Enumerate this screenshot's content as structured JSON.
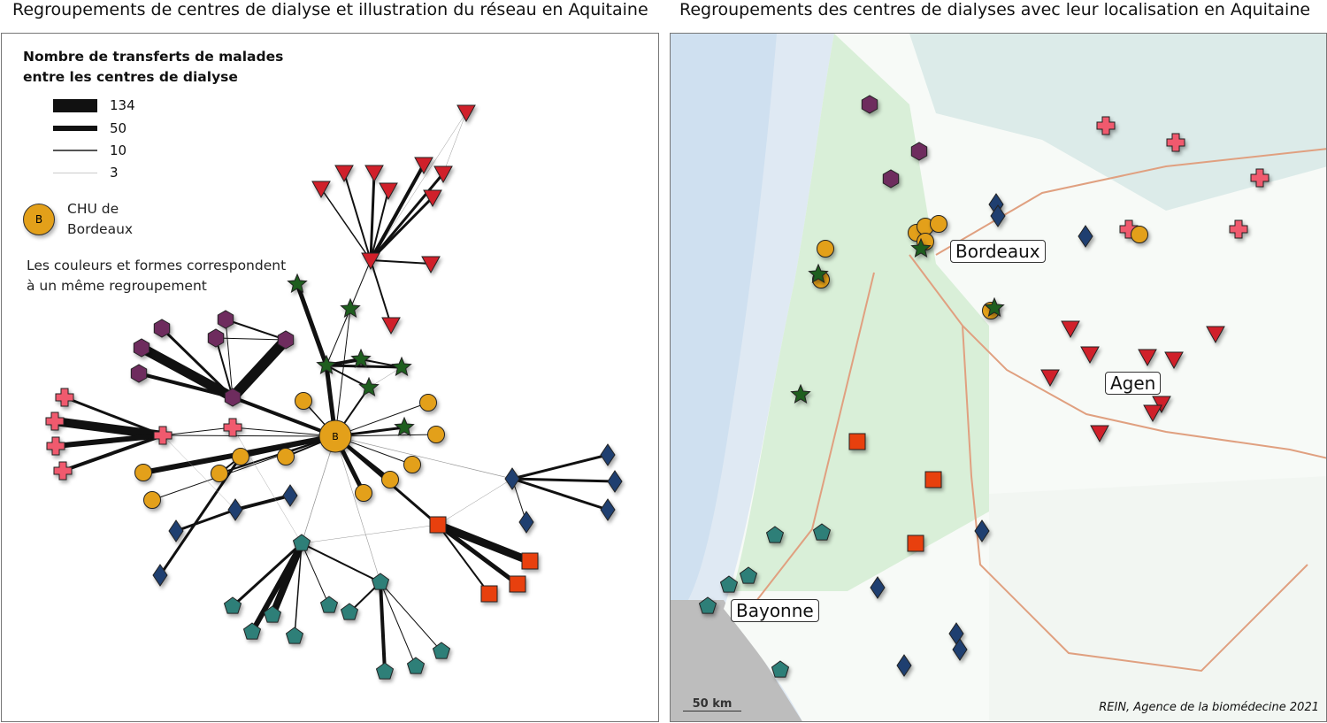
{
  "titles": {
    "left": "Regroupements de centres de dialyse et illustration du réseau en Aquitaine",
    "right": "Regroupements des centres de dialyses avec leur localisation en Aquitaine"
  },
  "legend": {
    "title_line1": "Nombre de transferts de malades",
    "title_line2": "entre les centres de dialyse",
    "weights": [
      "134",
      "50",
      "10",
      "3"
    ],
    "chu_letter": "B",
    "chu_line1": "CHU de",
    "chu_line2": "Bordeaux",
    "note_line1": "Les couleurs et formes correspondent",
    "note_line2": "à un même regroupement"
  },
  "map": {
    "cities": [
      "Bordeaux",
      "Agen",
      "Bayonne"
    ],
    "scale": "50 km",
    "credit": "REIN, Agence de la biomédecine 2021"
  },
  "colors": {
    "red_triangle": "#d0202a",
    "pink_cross": "#f05a6e",
    "purple_hexagon": "#6e2c5e",
    "green_star": "#1e5e1e",
    "orange_circle": "#e3a01a",
    "navy_diamond": "#1f3f70",
    "orange_square": "#e8400e",
    "teal_pentagon": "#2e7f78"
  }
}
